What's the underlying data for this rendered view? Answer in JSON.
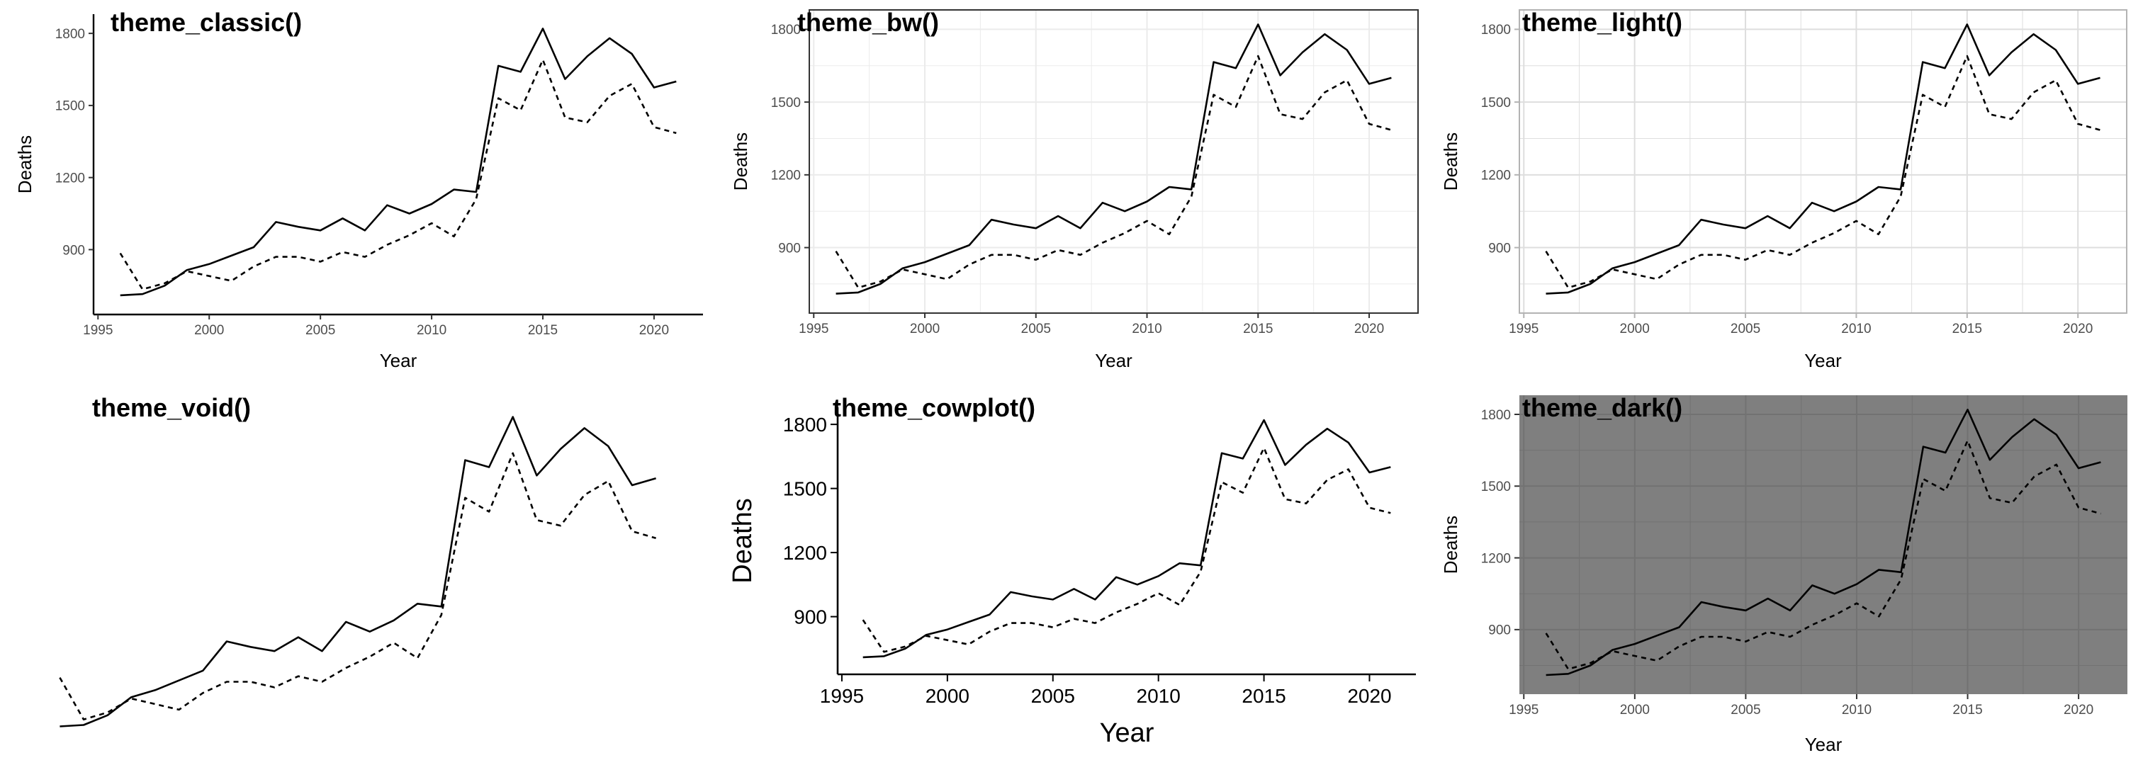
{
  "chart_data": [
    {
      "type": "line",
      "title": "theme_classic()",
      "xlabel": "Year",
      "ylabel": "Deaths",
      "x": [
        1996,
        1997,
        1998,
        1999,
        2000,
        2001,
        2002,
        2003,
        2004,
        2005,
        2006,
        2007,
        2008,
        2009,
        2010,
        2011,
        2012,
        2013,
        2014,
        2015,
        2016,
        2017,
        2018,
        2019,
        2020,
        2021
      ],
      "series": [
        {
          "values": [
            710,
            715,
            750,
            815,
            840,
            875,
            910,
            1015,
            995,
            980,
            1030,
            980,
            1085,
            1050,
            1090,
            1150,
            1140,
            1665,
            1640,
            1820,
            1610,
            1705,
            1780,
            1715,
            1575,
            1600
          ]
        },
        {
          "values": [
            885,
            735,
            760,
            810,
            790,
            770,
            830,
            870,
            870,
            850,
            890,
            870,
            920,
            960,
            1010,
            955,
            1110,
            1530,
            1480,
            1690,
            1450,
            1430,
            1540,
            1590,
            1410,
            1385
          ]
        }
      ],
      "xticks": [
        1995,
        2000,
        2005,
        2010,
        2015,
        2020
      ],
      "yticks": [
        900,
        1200,
        1500,
        1800
      ],
      "xlim": [
        1994.8,
        2022.2
      ],
      "ylim": [
        630,
        1880
      ],
      "grid": false
    },
    {
      "type": "line",
      "title": "theme_bw()",
      "xlabel": "Year",
      "ylabel": "Deaths",
      "x": [
        1996,
        1997,
        1998,
        1999,
        2000,
        2001,
        2002,
        2003,
        2004,
        2005,
        2006,
        2007,
        2008,
        2009,
        2010,
        2011,
        2012,
        2013,
        2014,
        2015,
        2016,
        2017,
        2018,
        2019,
        2020,
        2021
      ],
      "series": [
        {
          "values": [
            710,
            715,
            750,
            815,
            840,
            875,
            910,
            1015,
            995,
            980,
            1030,
            980,
            1085,
            1050,
            1090,
            1150,
            1140,
            1665,
            1640,
            1820,
            1610,
            1705,
            1780,
            1715,
            1575,
            1600
          ]
        },
        {
          "values": [
            885,
            735,
            760,
            810,
            790,
            770,
            830,
            870,
            870,
            850,
            890,
            870,
            920,
            960,
            1010,
            955,
            1110,
            1530,
            1480,
            1690,
            1450,
            1430,
            1540,
            1590,
            1410,
            1385
          ]
        }
      ],
      "xticks": [
        1995,
        2000,
        2005,
        2010,
        2015,
        2020
      ],
      "yticks": [
        900,
        1200,
        1500,
        1800
      ],
      "xlim": [
        1994.8,
        2022.2
      ],
      "ylim": [
        630,
        1880
      ],
      "grid": true
    },
    {
      "type": "line",
      "title": "theme_light()",
      "xlabel": "Year",
      "ylabel": "Deaths",
      "x": [
        1996,
        1997,
        1998,
        1999,
        2000,
        2001,
        2002,
        2003,
        2004,
        2005,
        2006,
        2007,
        2008,
        2009,
        2010,
        2011,
        2012,
        2013,
        2014,
        2015,
        2016,
        2017,
        2018,
        2019,
        2020,
        2021
      ],
      "series": [
        {
          "values": [
            710,
            715,
            750,
            815,
            840,
            875,
            910,
            1015,
            995,
            980,
            1030,
            980,
            1085,
            1050,
            1090,
            1150,
            1140,
            1665,
            1640,
            1820,
            1610,
            1705,
            1780,
            1715,
            1575,
            1600
          ]
        },
        {
          "values": [
            885,
            735,
            760,
            810,
            790,
            770,
            830,
            870,
            870,
            850,
            890,
            870,
            920,
            960,
            1010,
            955,
            1110,
            1530,
            1480,
            1690,
            1450,
            1430,
            1540,
            1590,
            1410,
            1385
          ]
        }
      ],
      "xticks": [
        1995,
        2000,
        2005,
        2010,
        2015,
        2020
      ],
      "yticks": [
        900,
        1200,
        1500,
        1800
      ],
      "xlim": [
        1994.8,
        2022.2
      ],
      "ylim": [
        630,
        1880
      ],
      "grid": true
    },
    {
      "type": "line",
      "title": "theme_void()",
      "xlabel": "",
      "ylabel": "",
      "x": [
        1996,
        1997,
        1998,
        1999,
        2000,
        2001,
        2002,
        2003,
        2004,
        2005,
        2006,
        2007,
        2008,
        2009,
        2010,
        2011,
        2012,
        2013,
        2014,
        2015,
        2016,
        2017,
        2018,
        2019,
        2020,
        2021
      ],
      "series": [
        {
          "values": [
            710,
            715,
            750,
            815,
            840,
            875,
            910,
            1015,
            995,
            980,
            1030,
            980,
            1085,
            1050,
            1090,
            1150,
            1140,
            1665,
            1640,
            1820,
            1610,
            1705,
            1780,
            1715,
            1575,
            1600
          ]
        },
        {
          "values": [
            885,
            735,
            760,
            810,
            790,
            770,
            830,
            870,
            870,
            850,
            890,
            870,
            920,
            960,
            1010,
            955,
            1110,
            1530,
            1480,
            1690,
            1450,
            1430,
            1540,
            1590,
            1410,
            1385
          ]
        }
      ],
      "xlim": [
        1994.8,
        2022.2
      ],
      "ylim": [
        630,
        1880
      ],
      "grid": false
    },
    {
      "type": "line",
      "title": "theme_cowplot()",
      "xlabel": "Year",
      "ylabel": "Deaths",
      "x": [
        1996,
        1997,
        1998,
        1999,
        2000,
        2001,
        2002,
        2003,
        2004,
        2005,
        2006,
        2007,
        2008,
        2009,
        2010,
        2011,
        2012,
        2013,
        2014,
        2015,
        2016,
        2017,
        2018,
        2019,
        2020,
        2021
      ],
      "series": [
        {
          "values": [
            710,
            715,
            750,
            815,
            840,
            875,
            910,
            1015,
            995,
            980,
            1030,
            980,
            1085,
            1050,
            1090,
            1150,
            1140,
            1665,
            1640,
            1820,
            1610,
            1705,
            1780,
            1715,
            1575,
            1600
          ]
        },
        {
          "values": [
            885,
            735,
            760,
            810,
            790,
            770,
            830,
            870,
            870,
            850,
            890,
            870,
            920,
            960,
            1010,
            955,
            1110,
            1530,
            1480,
            1690,
            1450,
            1430,
            1540,
            1590,
            1410,
            1385
          ]
        }
      ],
      "xticks": [
        1995,
        2000,
        2005,
        2010,
        2015,
        2020
      ],
      "yticks": [
        900,
        1200,
        1500,
        1800
      ],
      "xlim": [
        1994.8,
        2022.2
      ],
      "ylim": [
        630,
        1880
      ],
      "grid": false
    },
    {
      "type": "line",
      "title": "theme_dark()",
      "xlabel": "Year",
      "ylabel": "Deaths",
      "x": [
        1996,
        1997,
        1998,
        1999,
        2000,
        2001,
        2002,
        2003,
        2004,
        2005,
        2006,
        2007,
        2008,
        2009,
        2010,
        2011,
        2012,
        2013,
        2014,
        2015,
        2016,
        2017,
        2018,
        2019,
        2020,
        2021
      ],
      "series": [
        {
          "values": [
            710,
            715,
            750,
            815,
            840,
            875,
            910,
            1015,
            995,
            980,
            1030,
            980,
            1085,
            1050,
            1090,
            1150,
            1140,
            1665,
            1640,
            1820,
            1610,
            1705,
            1780,
            1715,
            1575,
            1600
          ]
        },
        {
          "values": [
            885,
            735,
            760,
            810,
            790,
            770,
            830,
            870,
            870,
            850,
            890,
            870,
            920,
            960,
            1010,
            955,
            1110,
            1530,
            1480,
            1690,
            1450,
            1430,
            1540,
            1590,
            1410,
            1385
          ]
        }
      ],
      "xticks": [
        1995,
        2000,
        2005,
        2010,
        2015,
        2020
      ],
      "yticks": [
        900,
        1200,
        1500,
        1800
      ],
      "xlim": [
        1994.8,
        2022.2
      ],
      "ylim": [
        630,
        1880
      ],
      "grid": true
    }
  ],
  "colors": {
    "line": "#000000",
    "bw_grid": "#ebebeb",
    "light_border": "#b3b3b3",
    "light_grid": "#dedede",
    "dark_panel": "#7f7f7f",
    "dark_grid": "#727272",
    "tick_text": "#4d4d4d",
    "cowplot_text": "#000000"
  }
}
